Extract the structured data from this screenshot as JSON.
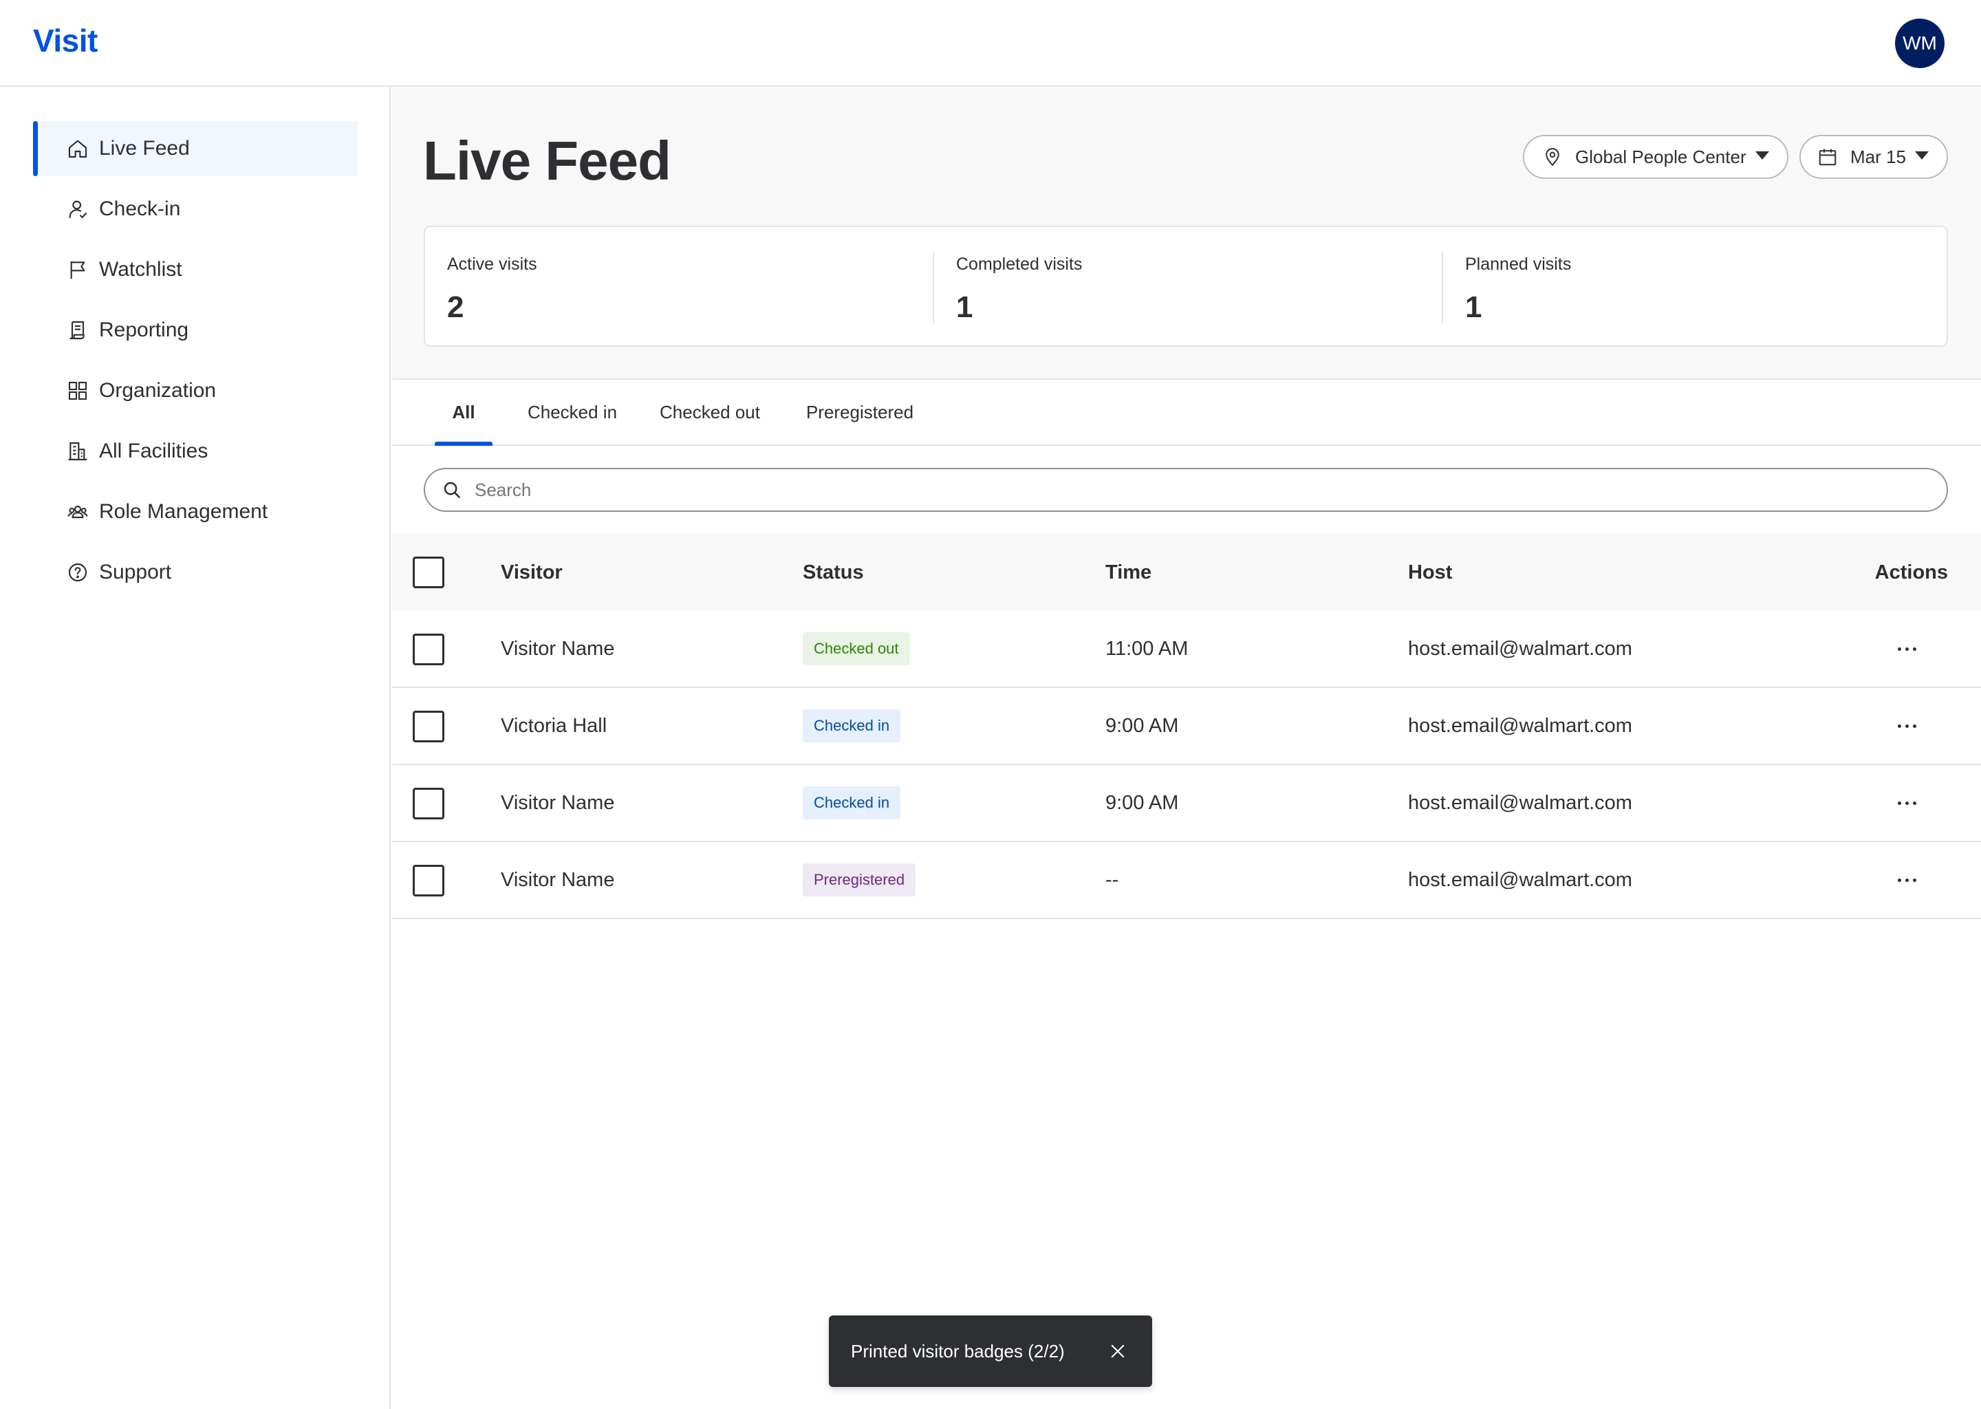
{
  "app": {
    "logo": "Visit",
    "avatar_initials": "WM",
    "brand_color": "#0053e2"
  },
  "sidebar": {
    "items": [
      {
        "label": "Live Feed",
        "icon": "home-icon",
        "active": true
      },
      {
        "label": "Check-in",
        "icon": "person-check-icon",
        "active": false
      },
      {
        "label": "Watchlist",
        "icon": "flag-icon",
        "active": false
      },
      {
        "label": "Reporting",
        "icon": "report-icon",
        "active": false
      },
      {
        "label": "Organization",
        "icon": "grid-icon",
        "active": false
      },
      {
        "label": "All Facilities",
        "icon": "building-icon",
        "active": false
      },
      {
        "label": "Role Management",
        "icon": "people-group-icon",
        "active": false
      },
      {
        "label": "Support",
        "icon": "help-circle-icon",
        "active": false
      }
    ]
  },
  "header": {
    "title": "Live Feed",
    "location_filter": "Global People Center",
    "date_filter": "Mar 15"
  },
  "stats": [
    {
      "label": "Active visits",
      "value": "2"
    },
    {
      "label": "Completed visits",
      "value": "1"
    },
    {
      "label": "Planned visits",
      "value": "1"
    }
  ],
  "tabs": [
    {
      "label": "All",
      "active": true
    },
    {
      "label": "Checked in",
      "active": false
    },
    {
      "label": "Checked out",
      "active": false
    },
    {
      "label": "Preregistered",
      "active": false
    }
  ],
  "search": {
    "placeholder": "Search",
    "value": ""
  },
  "table": {
    "columns": [
      "Visitor",
      "Status",
      "Time",
      "Host",
      "Actions"
    ],
    "rows": [
      {
        "visitor": "Visitor Name",
        "status": "Checked out",
        "time": "11:00 AM",
        "host": "host.email@walmart.com"
      },
      {
        "visitor": "Victoria Hall",
        "status": "Checked in",
        "time": "9:00 AM",
        "host": "host.email@walmart.com"
      },
      {
        "visitor": "Visitor Name",
        "status": "Checked in",
        "time": "9:00 AM",
        "host": "host.email@walmart.com"
      },
      {
        "visitor": "Visitor Name",
        "status": "Preregistered",
        "time": "--",
        "host": "host.email@walmart.com"
      }
    ]
  },
  "status_colors": {
    "Checked out": "#2a8703",
    "Checked in": "#004f9a",
    "Preregistered": "#6d2a80"
  },
  "toast": {
    "message": "Printed visitor badges (2/2)"
  }
}
